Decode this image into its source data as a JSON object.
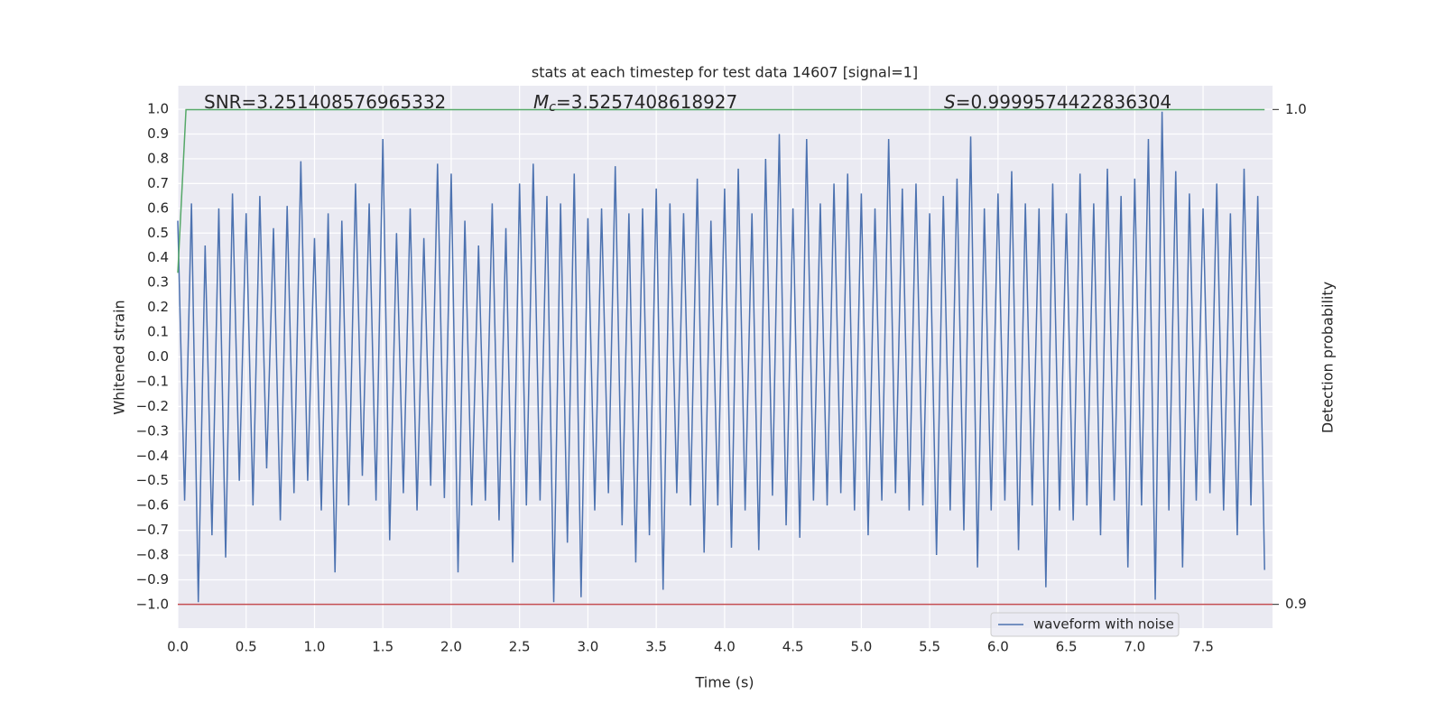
{
  "chart_data": {
    "type": "line",
    "title": "stats at each timestep for test data 14607 [signal=1]",
    "xlabel": "Time (s)",
    "ylabel": "Whitened strain",
    "y2label": "Detection probability",
    "xlim": [
      0,
      8.008
    ],
    "ylim": [
      -1.095,
      1.095
    ],
    "y2lim": [
      0.8952,
      1.0048
    ],
    "xticks": [
      {
        "value": 0,
        "label": "0.0"
      },
      0.5,
      {
        "value": 1,
        "label": "1.0"
      },
      1.5,
      {
        "value": 2,
        "label": "2.0"
      },
      2.5,
      {
        "value": 3,
        "label": "3.0"
      },
      3.5,
      {
        "value": 4,
        "label": "4.0"
      },
      4.5,
      {
        "value": 5,
        "label": "5.0"
      },
      5.5,
      {
        "value": 6,
        "label": "6.0"
      },
      6.5,
      {
        "value": 7,
        "label": "7.0"
      },
      7.5
    ],
    "yticks": [
      {
        "value": -1,
        "label": "−1.0"
      },
      {
        "value": -0.9,
        "label": "−0.9"
      },
      {
        "value": -0.8,
        "label": "−0.8"
      },
      {
        "value": -0.7,
        "label": "−0.7"
      },
      {
        "value": -0.6,
        "label": "−0.6"
      },
      {
        "value": -0.5,
        "label": "−0.5"
      },
      {
        "value": -0.4,
        "label": "−0.4"
      },
      {
        "value": -0.3,
        "label": "−0.3"
      },
      {
        "value": -0.2,
        "label": "−0.2"
      },
      {
        "value": -0.1,
        "label": "−0.1"
      },
      {
        "value": 0,
        "label": "0.0"
      },
      0.1,
      0.2,
      0.3,
      0.4,
      0.5,
      0.6,
      0.7,
      0.8,
      0.9,
      {
        "value": 1,
        "label": "1.0"
      }
    ],
    "y2ticks": [
      {
        "value": 0.9,
        "label": "0.9"
      },
      {
        "value": 1,
        "label": "1.0"
      }
    ],
    "grid": true,
    "legend": "lower right",
    "annotations": [
      {
        "text": "SNR=3.251408576965332"
      },
      {
        "symbol": "M",
        "subscript": "c",
        "text": "=3.5257408618927"
      },
      {
        "symbol": "S",
        "text": "=0.9999574422836304"
      }
    ],
    "hline": {
      "value": 0.9,
      "axis": "y2",
      "color": "#c44e52"
    },
    "series": [
      {
        "name": "waveform with noise",
        "color": "#4c72b0",
        "x": [
          0,
          0.05,
          0.1,
          0.15,
          0.2,
          0.25,
          0.3,
          0.35,
          0.4,
          0.45,
          0.5,
          0.55,
          0.6,
          0.65,
          0.7,
          0.75,
          0.8,
          0.85,
          0.9,
          0.95,
          1,
          1.05,
          1.1,
          1.15,
          1.2,
          1.25,
          1.3,
          1.35,
          1.4,
          1.45,
          1.5,
          1.55,
          1.6,
          1.65,
          1.7,
          1.75,
          1.8,
          1.85,
          1.9,
          1.95,
          2,
          2.05,
          2.1,
          2.15,
          2.2,
          2.25,
          2.3,
          2.35,
          2.4,
          2.45,
          2.5,
          2.55,
          2.6,
          2.65,
          2.7,
          2.75,
          2.8,
          2.85,
          2.9,
          2.95,
          3,
          3.05,
          3.1,
          3.15,
          3.2,
          3.25,
          3.3,
          3.35,
          3.4,
          3.45,
          3.5,
          3.55,
          3.6,
          3.65,
          3.7,
          3.75,
          3.8,
          3.85,
          3.9,
          3.95,
          4,
          4.05,
          4.1,
          4.15,
          4.2,
          4.25,
          4.3,
          4.35,
          4.4,
          4.45,
          4.5,
          4.55,
          4.6,
          4.65,
          4.7,
          4.75,
          4.8,
          4.85,
          4.9,
          4.95,
          5,
          5.05,
          5.1,
          5.15,
          5.2,
          5.25,
          5.3,
          5.35,
          5.4,
          5.45,
          5.5,
          5.55,
          5.6,
          5.65,
          5.7,
          5.75,
          5.8,
          5.85,
          5.9,
          5.95,
          6,
          6.05,
          6.1,
          6.15,
          6.2,
          6.25,
          6.3,
          6.35,
          6.4,
          6.45,
          6.5,
          6.55,
          6.6,
          6.65,
          6.7,
          6.75,
          6.8,
          6.85,
          6.9,
          6.95,
          7,
          7.05,
          7.1,
          7.15,
          7.2,
          7.25,
          7.3,
          7.35,
          7.4,
          7.45,
          7.5,
          7.55,
          7.6,
          7.65,
          7.7,
          7.75,
          7.8,
          7.85,
          7.9,
          7.95
        ],
        "values": [
          0.55,
          -0.58,
          0.62,
          -0.99,
          0.45,
          -0.72,
          0.6,
          -0.81,
          0.66,
          -0.5,
          0.58,
          -0.6,
          0.65,
          -0.45,
          0.52,
          -0.66,
          0.61,
          -0.55,
          0.79,
          -0.5,
          0.48,
          -0.62,
          0.58,
          -0.87,
          0.55,
          -0.6,
          0.7,
          -0.48,
          0.62,
          -0.58,
          0.88,
          -0.74,
          0.5,
          -0.55,
          0.6,
          -0.62,
          0.48,
          -0.52,
          0.78,
          -0.57,
          0.74,
          -0.87,
          0.55,
          -0.6,
          0.45,
          -0.58,
          0.62,
          -0.66,
          0.52,
          -0.83,
          0.7,
          -0.6,
          0.78,
          -0.58,
          0.65,
          -0.99,
          0.62,
          -0.75,
          0.74,
          -0.97,
          0.56,
          -0.62,
          0.6,
          -0.55,
          0.77,
          -0.68,
          0.58,
          -0.83,
          0.6,
          -0.72,
          0.68,
          -0.94,
          0.62,
          -0.55,
          0.58,
          -0.6,
          0.72,
          -0.79,
          0.55,
          -0.6,
          0.68,
          -0.77,
          0.76,
          -0.62,
          0.58,
          -0.78,
          0.8,
          -0.56,
          0.9,
          -0.68,
          0.6,
          -0.73,
          0.88,
          -0.58,
          0.62,
          -0.6,
          0.7,
          -0.55,
          0.74,
          -0.62,
          0.66,
          -0.72,
          0.6,
          -0.58,
          0.88,
          -0.55,
          0.68,
          -0.62,
          0.7,
          -0.6,
          0.58,
          -0.8,
          0.65,
          -0.62,
          0.72,
          -0.7,
          0.89,
          -0.85,
          0.6,
          -0.62,
          0.66,
          -0.58,
          0.75,
          -0.78,
          0.62,
          -0.6,
          0.6,
          -0.93,
          0.7,
          -0.62,
          0.58,
          -0.66,
          0.74,
          -0.6,
          0.62,
          -0.72,
          0.76,
          -0.58,
          0.65,
          -0.85,
          0.72,
          -0.6,
          0.88,
          -0.98,
          0.99,
          -0.62,
          0.75,
          -0.85,
          0.66,
          -0.58,
          0.6,
          -0.55,
          0.7,
          -0.62,
          0.58,
          -0.72,
          0.76,
          -0.6,
          0.65,
          -0.86
        ]
      },
      {
        "color": "#55a868",
        "axis": "y2",
        "x": [
          0,
          0.06,
          7.95
        ],
        "values": [
          0.967,
          0.99997,
          0.99997
        ]
      }
    ]
  }
}
